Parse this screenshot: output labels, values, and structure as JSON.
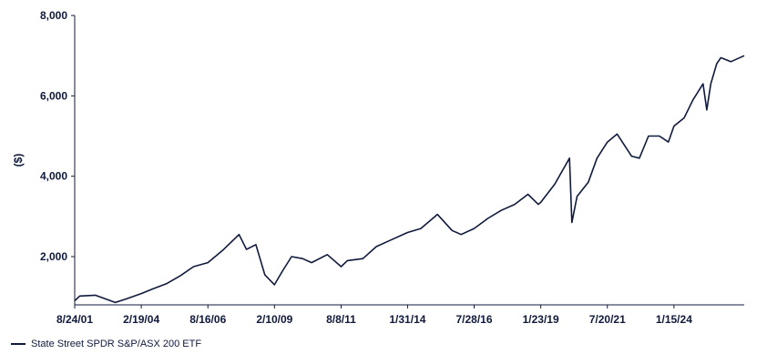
{
  "chart_data": {
    "type": "line",
    "ylabel": "($)",
    "ylim": [
      800,
      8000
    ],
    "xlim": [
      "2001-08-24",
      "2026-08-31"
    ],
    "yticks": [
      "8,000",
      "6,000",
      "4,000",
      "2,000"
    ],
    "ytick_values": [
      8000,
      6000,
      4000,
      2000
    ],
    "xticks": [
      "8/24/01",
      "2/19/04",
      "8/16/06",
      "2/10/09",
      "8/8/11",
      "1/31/14",
      "7/28/16",
      "1/23/19",
      "7/20/21",
      "1/15/24"
    ],
    "xtick_dates": [
      "2001-08-24",
      "2004-02-19",
      "2006-08-16",
      "2009-02-10",
      "2011-08-08",
      "2014-01-31",
      "2016-07-28",
      "2019-01-23",
      "2021-07-20",
      "2024-01-15"
    ],
    "grid": false,
    "legend_position": "bottom-left",
    "colors": {
      "line": "#0f1a3d",
      "axis": "#0f1a3d"
    },
    "series": [
      {
        "name": "State Street SPDR S&P/ASX 200 ETF",
        "x": [
          "2001-08-24",
          "2001-11-01",
          "2002-06-01",
          "2003-03-01",
          "2003-08-01",
          "2004-02-19",
          "2004-08-01",
          "2005-02-01",
          "2005-08-01",
          "2006-02-01",
          "2006-08-16",
          "2007-03-01",
          "2007-10-15",
          "2008-01-25",
          "2008-06-01",
          "2008-10-01",
          "2009-02-10",
          "2009-06-01",
          "2009-10-01",
          "2010-03-01",
          "2010-07-01",
          "2011-02-01",
          "2011-08-08",
          "2011-11-01",
          "2012-06-01",
          "2012-12-01",
          "2013-06-01",
          "2014-01-31",
          "2014-08-01",
          "2015-03-15",
          "2015-10-01",
          "2016-02-01",
          "2016-07-28",
          "2017-02-01",
          "2017-08-01",
          "2018-02-01",
          "2018-08-01",
          "2018-12-20",
          "2019-01-23",
          "2019-08-01",
          "2020-02-20",
          "2020-03-23",
          "2020-06-01",
          "2020-11-01",
          "2021-03-01",
          "2021-07-20",
          "2021-12-01",
          "2022-06-15",
          "2022-09-30",
          "2023-02-01",
          "2023-07-01",
          "2023-10-30",
          "2024-01-15",
          "2024-06-01",
          "2024-09-30",
          "2025-02-15",
          "2025-04-07",
          "2025-06-01",
          "2025-08-20",
          "2025-10-15",
          "2026-03-01",
          "2026-08-31"
        ],
        "values": [
          900,
          1020,
          1040,
          860,
          950,
          1080,
          1200,
          1330,
          1520,
          1750,
          1850,
          2150,
          2550,
          2180,
          2300,
          1550,
          1300,
          1650,
          2000,
          1950,
          1850,
          2050,
          1750,
          1900,
          1950,
          2250,
          2400,
          2600,
          2700,
          3050,
          2650,
          2550,
          2700,
          2950,
          3150,
          3300,
          3550,
          3300,
          3350,
          3800,
          4450,
          2850,
          3500,
          3850,
          4450,
          4850,
          5050,
          4500,
          4450,
          5000,
          5000,
          4850,
          5250,
          5450,
          5900,
          6300,
          5650,
          6300,
          6800,
          6950,
          6850,
          7000
        ]
      }
    ]
  }
}
